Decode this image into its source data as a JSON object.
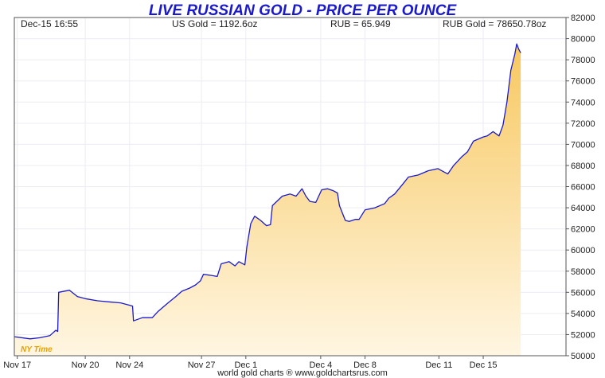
{
  "chart_data": {
    "type": "area",
    "title": "LIVE RUSSIAN GOLD - PRICE PER OUNCE",
    "header": {
      "datetime": "Dec-15  16:55",
      "us_gold": "US Gold = 1192.6oz",
      "rub": "RUB = 65.949",
      "rub_gold": "RUB Gold = 78650.78oz"
    },
    "ylim": [
      50000,
      82000
    ],
    "y_ticks": [
      50000,
      52000,
      54000,
      56000,
      58000,
      60000,
      62000,
      64000,
      66000,
      68000,
      70000,
      72000,
      74000,
      76000,
      78000,
      80000,
      82000
    ],
    "y_tick_labels": [
      "50000",
      "52000",
      "54000",
      "56000",
      "58000",
      "60000",
      "62000",
      "64000",
      "66000",
      "68000",
      "70000",
      "72000",
      "74000",
      "76000",
      "78000",
      "80000",
      "82000"
    ],
    "x_range": [
      0,
      28
    ],
    "x_ticks": [
      {
        "label": "Nov 17",
        "t": 0.15
      },
      {
        "label": "Nov 20",
        "t": 3.6
      },
      {
        "label": "Nov 24",
        "t": 5.85
      },
      {
        "label": "Nov 27",
        "t": 9.5
      },
      {
        "label": "Dec 1",
        "t": 11.75
      },
      {
        "label": "Dec 4",
        "t": 15.55
      },
      {
        "label": "Dec 8",
        "t": 17.8
      },
      {
        "label": "Dec 11",
        "t": 21.55
      },
      {
        "label": "Dec 15",
        "t": 23.8
      }
    ],
    "grid": true,
    "series": [
      {
        "color": "#1a1acc",
        "fill_top": "#f7c860",
        "fill_bottom": "#fff6e2",
        "points": [
          [
            0.0,
            51800
          ],
          [
            0.8,
            51600
          ],
          [
            1.3,
            51700
          ],
          [
            1.8,
            51900
          ],
          [
            2.1,
            52400
          ],
          [
            2.2,
            52300
          ],
          [
            2.25,
            56000
          ],
          [
            2.8,
            56200
          ],
          [
            3.2,
            55600
          ],
          [
            3.6,
            55400
          ],
          [
            4.2,
            55200
          ],
          [
            4.8,
            55100
          ],
          [
            5.4,
            55000
          ],
          [
            5.8,
            54800
          ],
          [
            6.0,
            54700
          ],
          [
            6.05,
            53300
          ],
          [
            6.5,
            53600
          ],
          [
            7.0,
            53600
          ],
          [
            7.3,
            54200
          ],
          [
            7.8,
            55000
          ],
          [
            8.2,
            55600
          ],
          [
            8.5,
            56100
          ],
          [
            8.9,
            56400
          ],
          [
            9.2,
            56700
          ],
          [
            9.45,
            57100
          ],
          [
            9.6,
            57700
          ],
          [
            10.0,
            57600
          ],
          [
            10.3,
            57500
          ],
          [
            10.5,
            58700
          ],
          [
            10.9,
            58900
          ],
          [
            11.2,
            58500
          ],
          [
            11.4,
            58900
          ],
          [
            11.7,
            58600
          ],
          [
            11.8,
            60300
          ],
          [
            12.0,
            62500
          ],
          [
            12.2,
            63200
          ],
          [
            12.5,
            62800
          ],
          [
            12.8,
            62300
          ],
          [
            13.0,
            62400
          ],
          [
            13.1,
            64200
          ],
          [
            13.6,
            65100
          ],
          [
            14.0,
            65300
          ],
          [
            14.3,
            65100
          ],
          [
            14.6,
            65800
          ],
          [
            14.8,
            65100
          ],
          [
            15.0,
            64600
          ],
          [
            15.3,
            64500
          ],
          [
            15.6,
            65700
          ],
          [
            15.9,
            65800
          ],
          [
            16.2,
            65600
          ],
          [
            16.4,
            65400
          ],
          [
            16.5,
            64200
          ],
          [
            16.8,
            62800
          ],
          [
            17.0,
            62700
          ],
          [
            17.3,
            62900
          ],
          [
            17.5,
            62900
          ],
          [
            17.8,
            63800
          ],
          [
            18.3,
            64000
          ],
          [
            18.8,
            64400
          ],
          [
            19.0,
            64900
          ],
          [
            19.3,
            65300
          ],
          [
            19.7,
            66200
          ],
          [
            20.0,
            66900
          ],
          [
            20.5,
            67100
          ],
          [
            21.0,
            67500
          ],
          [
            21.5,
            67700
          ],
          [
            21.8,
            67400
          ],
          [
            22.0,
            67200
          ],
          [
            22.3,
            68000
          ],
          [
            22.7,
            68800
          ],
          [
            23.0,
            69300
          ],
          [
            23.3,
            70300
          ],
          [
            23.8,
            70700
          ],
          [
            24.0,
            70800
          ],
          [
            24.3,
            71200
          ],
          [
            24.6,
            70800
          ],
          [
            24.8,
            71800
          ],
          [
            25.0,
            74000
          ],
          [
            25.2,
            77000
          ],
          [
            25.4,
            78500
          ],
          [
            25.5,
            79500
          ],
          [
            25.6,
            79000
          ],
          [
            25.7,
            78650
          ]
        ]
      }
    ],
    "annotation": "NY Time",
    "footer": "world gold charts ® www.goldchartsrus.com"
  }
}
